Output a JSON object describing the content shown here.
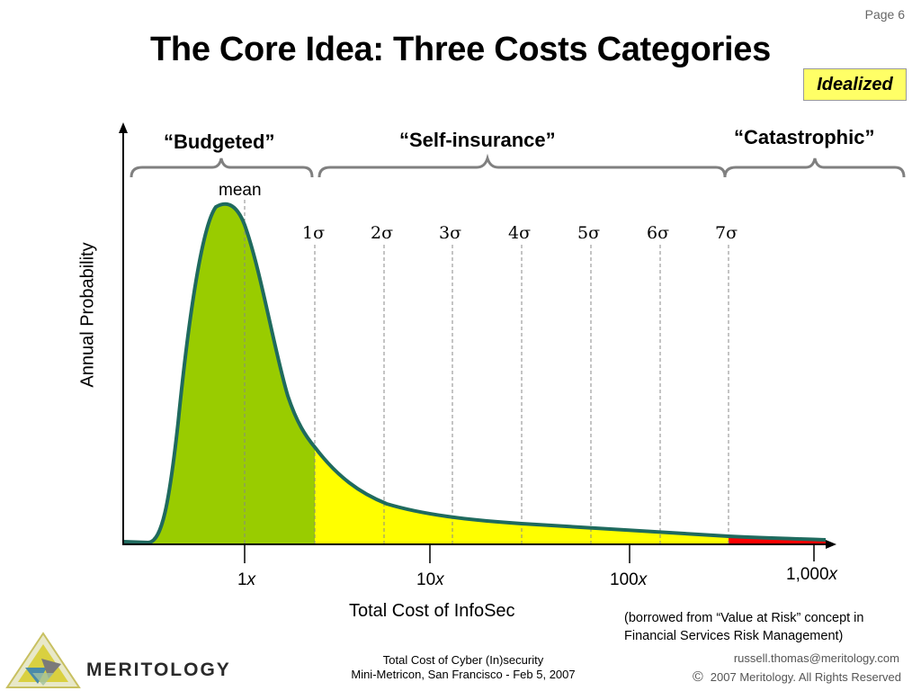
{
  "header": {
    "page": "Page 6",
    "title": "The Core Idea: Three Costs Categories",
    "tag": "Idealized"
  },
  "diagram": {
    "categories": [
      "“Budgeted”",
      "“Self-insurance”",
      "“Catastrophic”"
    ],
    "mean_label": "mean",
    "sigma_markers": [
      "1σ",
      "2σ",
      "3σ",
      "4σ",
      "5σ",
      "6σ",
      "7σ"
    ],
    "y_axis_label": "Annual Probability",
    "x_axis_label": "Total Cost of InfoSec",
    "x_ticks": [
      {
        "num": "1",
        "var": "x"
      },
      {
        "num": "10",
        "var": "x"
      },
      {
        "num": "100",
        "var": "x"
      },
      {
        "num": "1,000",
        "var": "x"
      }
    ],
    "region_colors": {
      "budgeted": "#99cc00",
      "self_insurance": "#ffff00",
      "catastrophic": "#ff0000",
      "curve": "#1f6a5e"
    }
  },
  "note": {
    "line1": "(borrowed from “Value at Risk” concept in",
    "line2": "Financial Services Risk Management)"
  },
  "footer": {
    "brand": "MERITOLOGY",
    "center_line1": "Total Cost of Cyber (In)security",
    "center_line2": "Mini-Metricon, San Francisco - Feb 5, 2007",
    "email": "russell.thomas@meritology.com",
    "copyright_symbol": "©",
    "copyright": "2007 Meritology. All Rights Reserved"
  }
}
